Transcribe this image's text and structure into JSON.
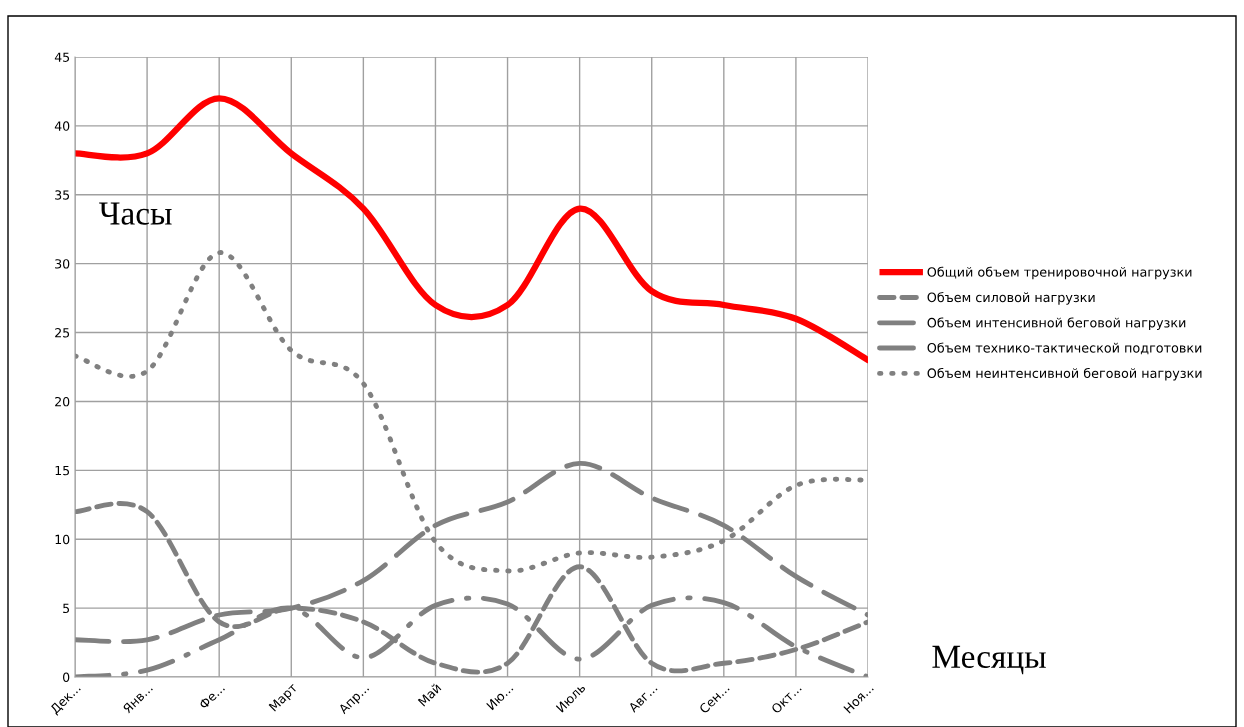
{
  "chart_data": {
    "type": "line",
    "xlabel": "Месяцы",
    "ylabel": "Часы",
    "categories": [
      "Дек...",
      "Янв...",
      "Фе...",
      "Март",
      "Апр...",
      "Май",
      "Ию...",
      "Июль",
      "Авг...",
      "Сен...",
      "Окт...",
      "Ноя..."
    ],
    "ylim": [
      0,
      45
    ],
    "yticks": [
      0,
      5,
      10,
      15,
      20,
      25,
      30,
      35,
      40,
      45
    ],
    "grid": true,
    "legend": "right",
    "marker": "none",
    "series": [
      {
        "name": "Общий объем тренировочной нагрузки",
        "color": "#ff0000",
        "line_style": "solid",
        "values": [
          38,
          38,
          42,
          38,
          34,
          27,
          27,
          34,
          28,
          27,
          26,
          23
        ]
      },
      {
        "name": "Объем силовой нагрузки",
        "color": "#808080",
        "line_style": "dashed",
        "values": [
          12,
          12,
          4,
          5,
          4,
          1,
          1,
          8,
          1,
          1,
          2,
          4
        ]
      },
      {
        "name": "Объем интенсивной беговой нагрузки",
        "color": "#808080",
        "line_style": "longdash",
        "values": [
          2.7,
          2.7,
          4.5,
          5,
          7,
          11,
          12.7,
          15.5,
          13,
          11,
          7.3,
          4.5
        ]
      },
      {
        "name": "Объем технико-тактической подготовки",
        "color": "#808080",
        "line_style": "dashdot",
        "values": [
          0,
          0.5,
          2.7,
          5,
          1.4,
          5.2,
          5.3,
          1.3,
          5.2,
          5.4,
          2.2,
          0
        ]
      },
      {
        "name": "Объем неинтенсивной беговой нагрузки",
        "color": "#808080",
        "line_style": "dotted",
        "values": [
          23.3,
          22.2,
          30.8,
          23.7,
          21.3,
          9.8,
          7.7,
          9,
          8.7,
          9.9,
          13.9,
          14.3
        ]
      }
    ]
  }
}
